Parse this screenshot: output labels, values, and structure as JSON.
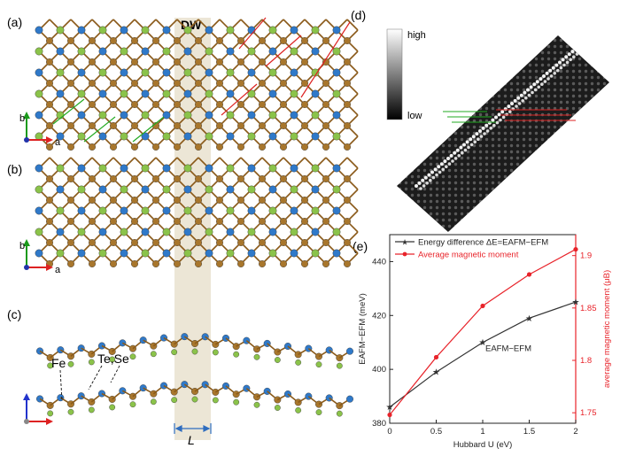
{
  "figure": {
    "panel_a": "(a)",
    "panel_b": "(b)",
    "panel_c": "(c)",
    "panel_d": "(d)",
    "panel_e": "(e)",
    "dw_label": "DW",
    "width_label": "L",
    "fe_label": "Fe",
    "tese_label": "Te,Se",
    "axis_b": "b",
    "axis_a": "a",
    "colorbar_high": "high",
    "colorbar_low": "low",
    "colors": {
      "fe": "#a8762c",
      "se": "#8bc34a",
      "te": "#2f79c9",
      "dw_band": "#ece6d6",
      "green_lines": "#22aa22",
      "red_lines": "#dd2222"
    }
  },
  "chart_data": {
    "type": "line",
    "x": [
      0,
      0.5,
      1,
      1.5,
      2
    ],
    "xlabel": "Hubbard U (eV)",
    "xlim": [
      0,
      2
    ],
    "xticks": [
      "0",
      "0.5",
      "1",
      "1.5",
      "2"
    ],
    "ylabel_left": "EAFM−EFM (meV)",
    "ylim_left": [
      380,
      450
    ],
    "yticks_left": [
      "380",
      "400",
      "420",
      "440"
    ],
    "ylabel_right": "average magnetic moment (μB)",
    "ylim_right": [
      1.74,
      1.92
    ],
    "yticks_right": [
      "1.75",
      "1.8",
      "1.85",
      "1.9"
    ],
    "annotation": "EAFM−EFM",
    "series": [
      {
        "name": "Energy difference ΔE=EAFM−EFM",
        "axis": "left",
        "color": "#333333",
        "marker": "star",
        "values": [
          386,
          399,
          410,
          419,
          425
        ]
      },
      {
        "name": "Average magnetic moment",
        "axis": "right",
        "color": "#e8232a",
        "marker": "circle",
        "values": [
          1.748,
          1.803,
          1.852,
          1.882,
          1.906
        ]
      }
    ],
    "legend_position": "top-left"
  }
}
